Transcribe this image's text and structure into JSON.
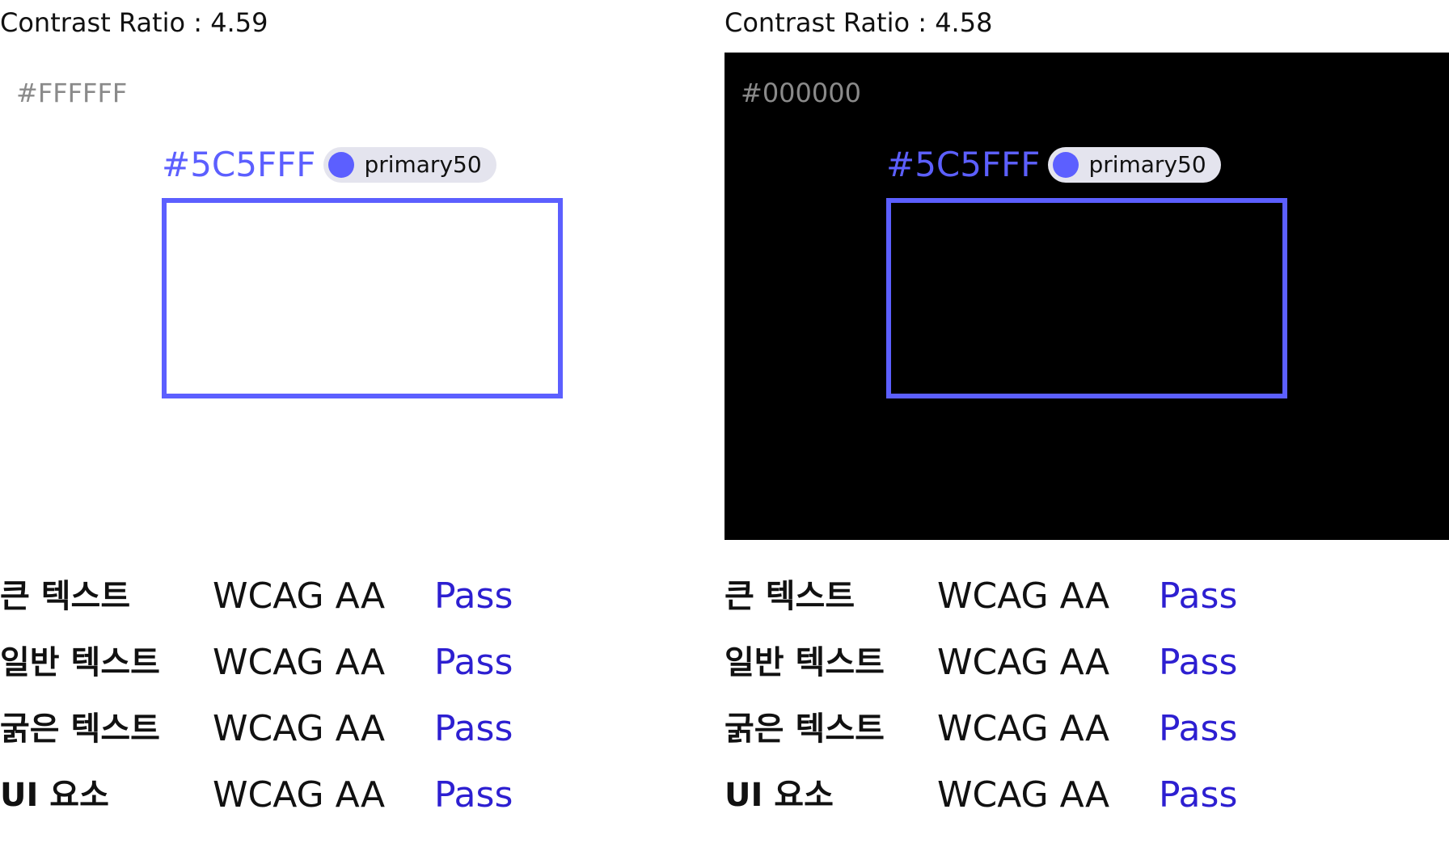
{
  "panels": [
    {
      "title": "Contrast Ratio : 4.59",
      "background": "#FFFFFF",
      "background_label": "#FFFFFF",
      "foreground": "#5C5FFF",
      "foreground_label": "#5C5FFF",
      "token": "primary50",
      "checks": [
        {
          "label": "큰 텍스트",
          "standard": "WCAG AA",
          "result": "Pass"
        },
        {
          "label": "일반 텍스트",
          "standard": "WCAG AA",
          "result": "Pass"
        },
        {
          "label": "굵은 텍스트",
          "standard": "WCAG AA",
          "result": "Pass"
        },
        {
          "label": "UI 요소",
          "standard": "WCAG AA",
          "result": "Pass"
        }
      ]
    },
    {
      "title": "Contrast Ratio : 4.58",
      "background": "#000000",
      "background_label": "#000000",
      "foreground": "#5C5FFF",
      "foreground_label": "#5C5FFF",
      "token": "primary50",
      "checks": [
        {
          "label": "큰 텍스트",
          "standard": "WCAG AA",
          "result": "Pass"
        },
        {
          "label": "일반 텍스트",
          "standard": "WCAG AA",
          "result": "Pass"
        },
        {
          "label": "굵은 텍스트",
          "standard": "WCAG AA",
          "result": "Pass"
        },
        {
          "label": "UI 요소",
          "standard": "WCAG AA",
          "result": "Pass"
        }
      ]
    }
  ],
  "colors": {
    "pass_text": "#2D1FD1",
    "chip_background": "#E4E4EE"
  }
}
